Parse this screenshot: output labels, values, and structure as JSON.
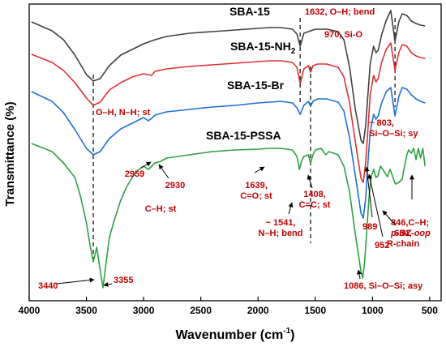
{
  "chart_data": {
    "type": "line",
    "title": "",
    "xlabel": "Wavenumber (cm",
    "xlabel_sup": "-1",
    "xlabel_end": ")",
    "ylabel": "Transmittance (%)",
    "xlim": [
      4000,
      400
    ],
    "x_reversed": true,
    "x_ticks": [
      "4000",
      "3500",
      "3000",
      "2500",
      "2000",
      "1500",
      "1000",
      "500"
    ],
    "y_ticks": "none",
    "legend": "labels placed above each curve",
    "series": [
      {
        "name": "SBA-15",
        "color": "#404040",
        "x": [
          3980,
          3800,
          3700,
          3600,
          3500,
          3440,
          3380,
          3300,
          3200,
          3100,
          3000,
          2900,
          2800,
          2600,
          2400,
          2200,
          2000,
          1900,
          1800,
          1700,
          1660,
          1632,
          1600,
          1500,
          1400,
          1300,
          1250,
          1200,
          1150,
          1100,
          1080,
          1060,
          1040,
          1020,
          990,
          970,
          950,
          920,
          880,
          840,
          803,
          770,
          740,
          700,
          660,
          620,
          580,
          540
        ],
        "y": [
          22,
          33,
          44,
          63,
          87,
          95,
          92,
          76,
          63,
          56,
          49,
          44,
          40,
          36,
          34,
          32,
          30,
          29,
          29,
          31,
          37,
          52,
          36,
          31,
          31,
          34,
          44,
          78,
          130,
          168,
          172,
          150,
          112,
          74,
          52,
          60,
          57,
          38,
          20,
          8,
          46,
          22,
          12,
          14,
          21,
          24,
          26,
          27
        ]
      },
      {
        "name": "SBA-15-NH2",
        "color": "#e03030",
        "x": [
          3980,
          3800,
          3700,
          3600,
          3500,
          3440,
          3380,
          3300,
          3200,
          3100,
          3000,
          2930,
          2900,
          2800,
          2600,
          2400,
          2200,
          2000,
          1900,
          1800,
          1700,
          1660,
          1632,
          1600,
          1560,
          1541,
          1520,
          1480,
          1400,
          1300,
          1250,
          1200,
          1150,
          1100,
          1080,
          1060,
          1040,
          1020,
          990,
          970,
          950,
          920,
          880,
          840,
          803,
          770,
          740,
          700,
          660,
          620,
          580,
          540
        ],
        "y": [
          62,
          72,
          82,
          97,
          116,
          125,
          121,
          106,
          97,
          90,
          86,
          88,
          83,
          80,
          77,
          75,
          73,
          71,
          70,
          70,
          72,
          78,
          98,
          80,
          76,
          84,
          76,
          74,
          74,
          78,
          90,
          122,
          170,
          215,
          220,
          196,
          155,
          112,
          88,
          96,
          92,
          72,
          56,
          48,
          82,
          60,
          50,
          52,
          60,
          64,
          66,
          67
        ]
      },
      {
        "name": "SBA-15-Br",
        "color": "#1f6fd6",
        "x": [
          3980,
          3800,
          3700,
          3600,
          3500,
          3440,
          3380,
          3300,
          3200,
          3100,
          3000,
          2960,
          2930,
          2900,
          2800,
          2600,
          2400,
          2200,
          2000,
          1900,
          1800,
          1700,
          1660,
          1632,
          1600,
          1560,
          1541,
          1520,
          1480,
          1400,
          1300,
          1250,
          1200,
          1150,
          1100,
          1080,
          1060,
          1040,
          1020,
          990,
          970,
          950,
          920,
          880,
          840,
          803,
          770,
          740,
          700,
          660,
          620,
          580,
          540
        ],
        "y": [
          108,
          120,
          134,
          155,
          178,
          186,
          182,
          166,
          154,
          147,
          140,
          144,
          141,
          137,
          133,
          130,
          127,
          125,
          122,
          121,
          120,
          122,
          128,
          136,
          125,
          120,
          126,
          120,
          117,
          117,
          121,
          132,
          165,
          212,
          258,
          264,
          240,
          196,
          158,
          136,
          142,
          138,
          122,
          108,
          103,
          138,
          114,
          103,
          105,
          112,
          117,
          120,
          122
        ]
      },
      {
        "name": "SBA-15-PSSA",
        "color": "#2ea043",
        "x": [
          3980,
          3800,
          3700,
          3600,
          3550,
          3500,
          3470,
          3440,
          3410,
          3380,
          3355,
          3330,
          3300,
          3250,
          3200,
          3150,
          3100,
          3050,
          3000,
          2959,
          2930,
          2900,
          2850,
          2800,
          2600,
          2400,
          2200,
          2000,
          1900,
          1800,
          1700,
          1660,
          1639,
          1620,
          1600,
          1560,
          1541,
          1520,
          1500,
          1450,
          1408,
          1380,
          1300,
          1250,
          1200,
          1150,
          1100,
          1086,
          1070,
          1050,
          1030,
          1010,
          989,
          970,
          952,
          930,
          900,
          870,
          846,
          820,
          800,
          770,
          740,
          720,
          700,
          684,
          660,
          640,
          620,
          600,
          580,
          560,
          540
        ],
        "y": [
          172,
          182,
          196,
          214,
          238,
          270,
          296,
          318,
          300,
          328,
          350,
          322,
          288,
          264,
          242,
          226,
          214,
          205,
          200,
          204,
          200,
          196,
          194,
          190,
          186,
          182,
          180,
          179,
          178,
          178,
          180,
          188,
          204,
          194,
          188,
          186,
          196,
          186,
          180,
          178,
          186,
          182,
          186,
          200,
          232,
          284,
          330,
          338,
          320,
          280,
          238,
          212,
          204,
          214,
          212,
          200,
          206,
          213,
          204,
          214,
          222,
          220,
          216,
          200,
          186,
          180,
          184,
          178,
          192,
          178,
          190,
          178,
          200
        ]
      }
    ],
    "series_labels": [
      {
        "text": "SBA-15",
        "sub": ""
      },
      {
        "text": "SBA-15-NH",
        "sub": "2"
      },
      {
        "text": "SBA-15-Br",
        "sub": ""
      },
      {
        "text": "SBA-15-PSSA",
        "sub": ""
      }
    ],
    "reference_lines": [
      3440,
      1632,
      1541,
      803
    ],
    "annotations": [
      {
        "lines": [
          "1632, O–H; bend"
        ]
      },
      {
        "lines": [
          "970, Si-O"
        ]
      },
      {
        "lines": [
          "O–H, N–H; st"
        ]
      },
      {
        "lines": [
          "~ 803,",
          "Si–O–Si; sy"
        ]
      },
      {
        "lines": [
          "2959"
        ]
      },
      {
        "lines": [
          "2930"
        ]
      },
      {
        "lines": [
          "C–H; st"
        ]
      },
      {
        "lines": [
          "1639,",
          "C=O; st"
        ]
      },
      {
        "lines": [
          "1408,",
          "C=C; st"
        ]
      },
      {
        "lines": [
          "~ 1541,",
          "N–H; bend"
        ]
      },
      {
        "lines": [
          "684,",
          "R-chain"
        ]
      },
      {
        "lines": [
          "846,C–H;",
          "p-BZ-oop"
        ]
      },
      {
        "lines": [
          "989"
        ]
      },
      {
        "lines": [
          "952"
        ]
      },
      {
        "lines": [
          "3440"
        ]
      },
      {
        "lines": [
          "3355"
        ]
      },
      {
        "lines": [
          "1086, Si–O–Si; asy"
        ]
      }
    ]
  }
}
